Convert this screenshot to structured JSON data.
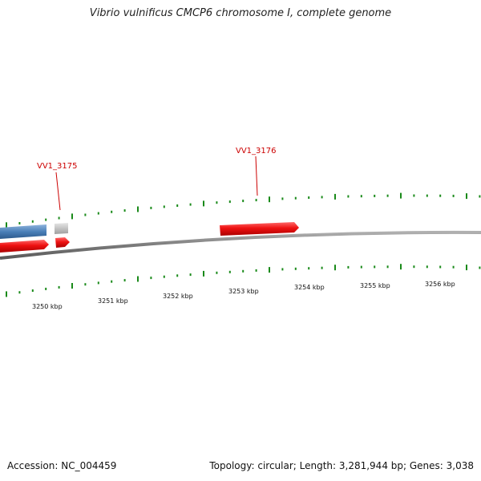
{
  "title": "Vibrio vulnificus CMCP6 chromosome I, complete genome",
  "footer": {
    "accession": "Accession: NC_004459",
    "summary": "Topology: circular; Length: 3,281,944 bp; Genes: 3,038"
  },
  "genes": [
    {
      "label": "VV1_3175"
    },
    {
      "label": "VV1_3176"
    }
  ],
  "ruler": {
    "ticks": [
      "3250 kbp",
      "3251 kbp",
      "3252 kbp",
      "3253 kbp",
      "3254 kbp",
      "3255 kbp",
      "3256 kbp"
    ]
  },
  "colors": {
    "forward_gene": "#ee1111",
    "reverse_gene": "#4a7fb8",
    "other_gene": "#c8c8c8",
    "backbone": "#888888",
    "ticks": "#1a8a1a",
    "label": "#cc0000"
  }
}
